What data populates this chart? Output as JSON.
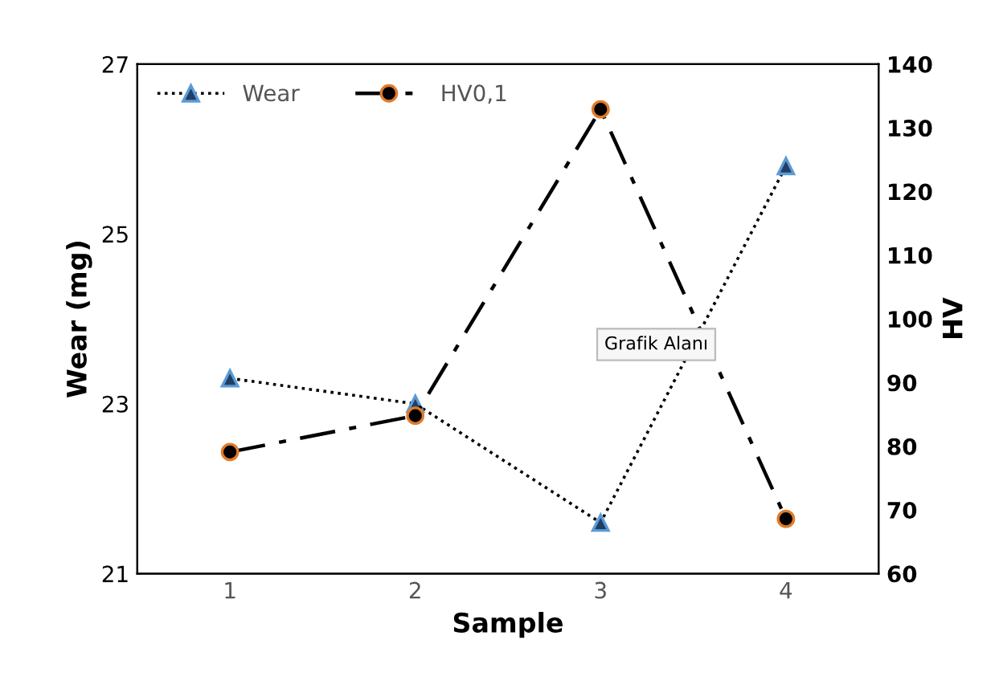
{
  "chart_data": {
    "type": "line",
    "categories": [
      "1",
      "2",
      "3",
      "4"
    ],
    "xlabel": "Sample",
    "ylabel": "Wear (mg)",
    "y2label": "HV",
    "ylim": [
      21,
      27
    ],
    "yticks": [
      21,
      23,
      25,
      27
    ],
    "y2lim": [
      60,
      140
    ],
    "y2ticks": [
      60,
      70,
      80,
      90,
      100,
      110,
      120,
      130,
      140
    ],
    "series": [
      {
        "name": "Wear",
        "color": "#000000",
        "values": [
          23.3,
          23.0,
          21.6,
          25.8
        ],
        "marker": "triangle",
        "line_style": "dotted"
      },
      {
        "name": "HV0,1",
        "color": "#000000",
        "values": [
          79.1,
          84.8,
          132.9,
          68.6
        ],
        "marker": "circle",
        "line_style": "dashdot",
        "axis": "y2"
      }
    ],
    "legend": "top left",
    "grid": false,
    "annotations": [
      "Grafik Alanı"
    ]
  }
}
